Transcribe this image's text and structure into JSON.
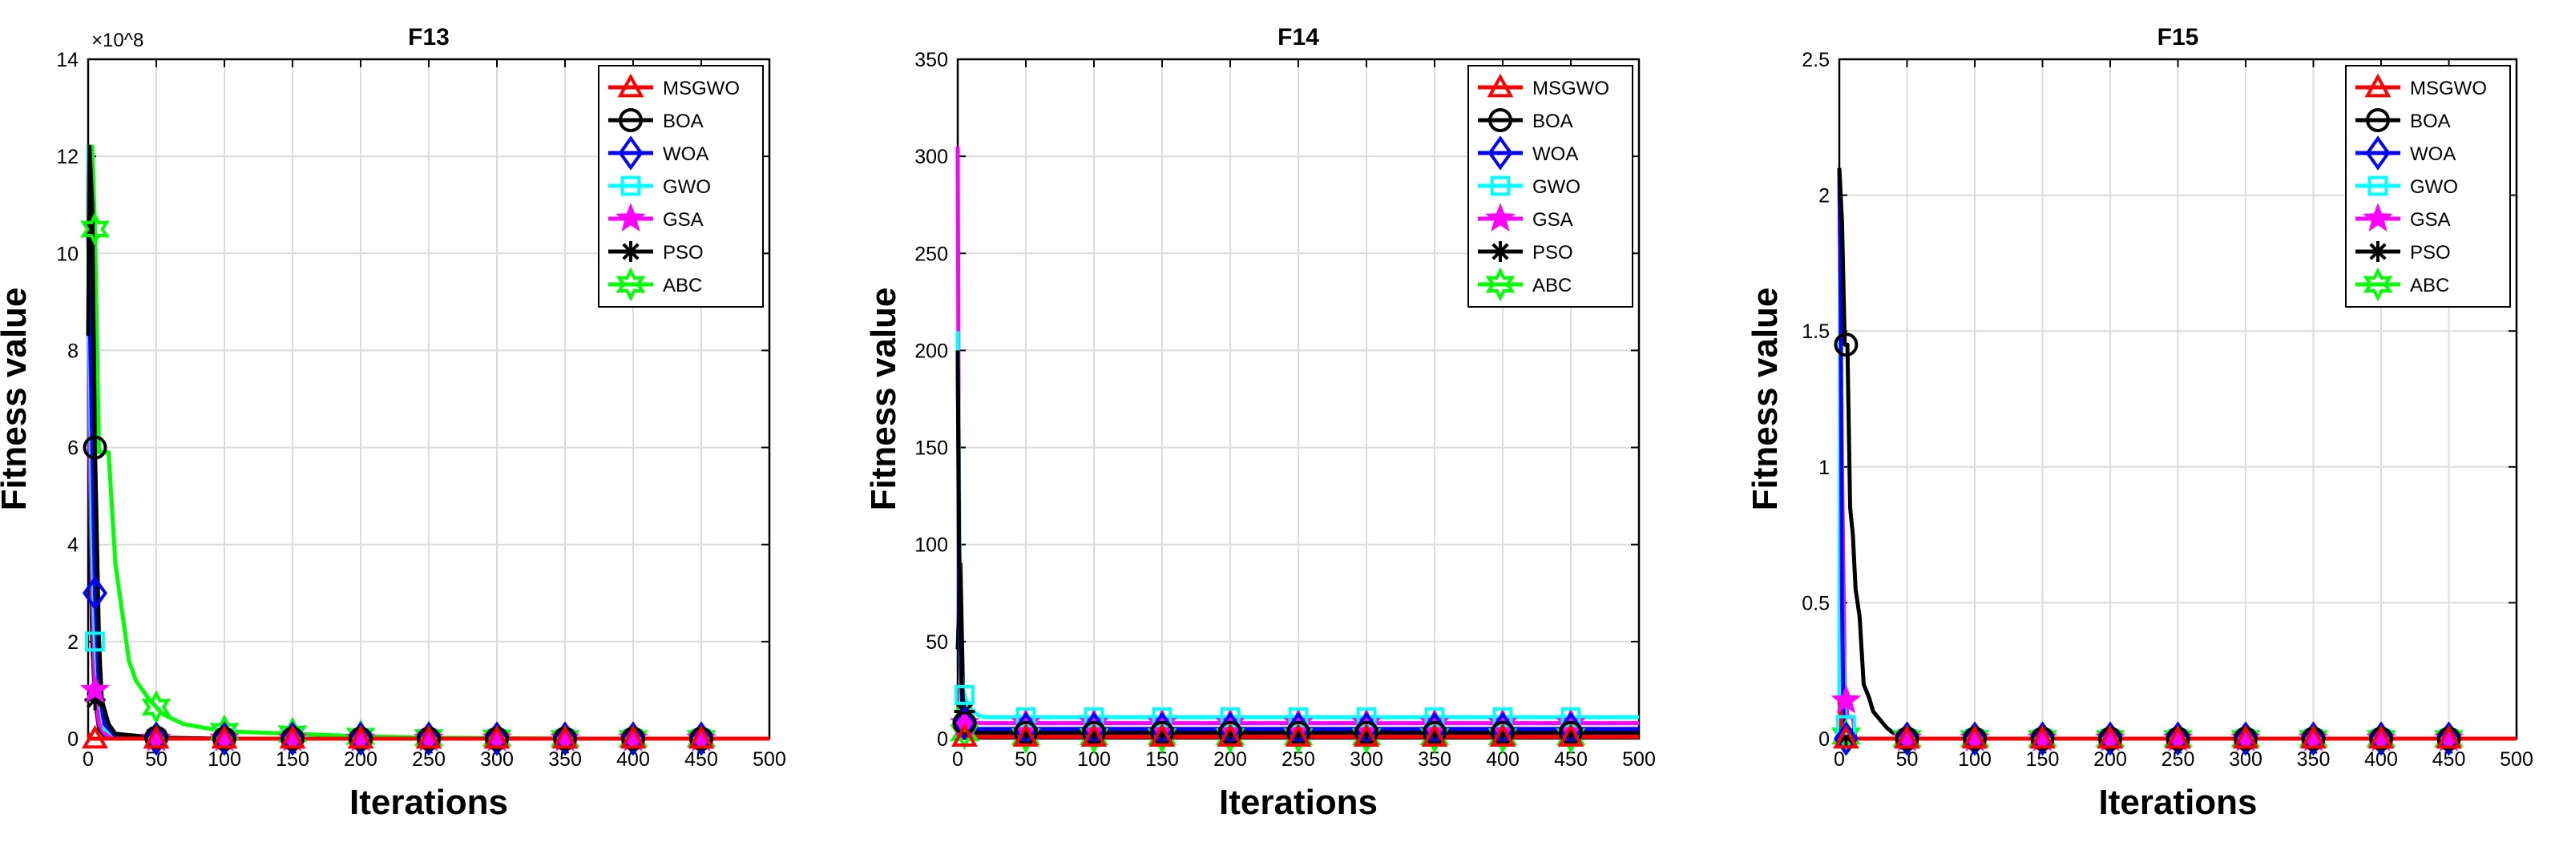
{
  "chart_data": [
    {
      "type": "line",
      "title": "F13",
      "xlabel": "Iterations",
      "ylabel": "Fitness value",
      "xlim": [
        0,
        500
      ],
      "ylim": [
        0,
        14
      ],
      "y_exponent_label": "×10^8",
      "xticks": [
        0,
        50,
        100,
        150,
        200,
        250,
        300,
        350,
        400,
        450,
        500
      ],
      "yticks": [
        0,
        2,
        4,
        6,
        8,
        10,
        12,
        14
      ],
      "grid": true,
      "legend_position": "top-right",
      "series": [
        {
          "name": "MSGWO",
          "color": "#ff0000",
          "marker": "triangle",
          "x": [
            0,
            1,
            2,
            500
          ],
          "y": [
            0.1,
            0.05,
            0,
            0
          ]
        },
        {
          "name": "BOA",
          "color": "#000000",
          "marker": "circle",
          "x": [
            0,
            1,
            3,
            5,
            8,
            10,
            15,
            20,
            50,
            100,
            500
          ],
          "y": [
            8.3,
            12.2,
            11,
            6,
            2,
            0.8,
            0.3,
            0.1,
            0.02,
            0,
            0
          ]
        },
        {
          "name": "WOA",
          "color": "#0000ff",
          "marker": "diamond",
          "x": [
            0,
            1,
            3,
            5,
            8,
            12,
            20,
            50,
            500
          ],
          "y": [
            10.5,
            9,
            6,
            3,
            1,
            0.3,
            0.05,
            0,
            0
          ]
        },
        {
          "name": "GWO",
          "color": "#00ffff",
          "marker": "square",
          "x": [
            0,
            1,
            3,
            5,
            8,
            12,
            20,
            50,
            500
          ],
          "y": [
            12.2,
            8,
            4,
            2,
            0.8,
            0.2,
            0.05,
            0,
            0
          ]
        },
        {
          "name": "GSA",
          "color": "#ff00ff",
          "marker": "star",
          "x": [
            0,
            1,
            3,
            5,
            8,
            12,
            20,
            50,
            500
          ],
          "y": [
            12.2,
            6,
            3,
            1,
            0.3,
            0.1,
            0,
            0,
            0
          ]
        },
        {
          "name": "PSO",
          "color": "#000000",
          "marker": "asterisk",
          "x": [
            0,
            1,
            3,
            5,
            8,
            12,
            20,
            50,
            500
          ],
          "y": [
            12.2,
            5,
            2,
            0.8,
            0.2,
            0.05,
            0,
            0,
            0
          ]
        },
        {
          "name": "ABC",
          "color": "#00ff00",
          "marker": "hexagram",
          "x": [
            0,
            3,
            5,
            8,
            15,
            20,
            25,
            30,
            35,
            45,
            55,
            70,
            100,
            150,
            200,
            250,
            300,
            350,
            400,
            450,
            500
          ],
          "y": [
            12.2,
            12.2,
            10.5,
            5.9,
            5.9,
            3.6,
            2.6,
            1.6,
            1.2,
            0.8,
            0.5,
            0.3,
            0.15,
            0.1,
            0.05,
            0.02,
            0.01,
            0,
            0,
            0,
            0
          ]
        }
      ]
    },
    {
      "type": "line",
      "title": "F14",
      "xlabel": "Iterations",
      "ylabel": "Fitness value",
      "xlim": [
        0,
        500
      ],
      "ylim": [
        0,
        350
      ],
      "xticks": [
        0,
        50,
        100,
        150,
        200,
        250,
        300,
        350,
        400,
        450,
        500
      ],
      "yticks": [
        0,
        50,
        100,
        150,
        200,
        250,
        300,
        350
      ],
      "grid": true,
      "legend_position": "top-right",
      "series": [
        {
          "name": "MSGWO",
          "color": "#ff0000",
          "marker": "triangle",
          "x": [
            0,
            1,
            2,
            500
          ],
          "y": [
            7,
            3,
            1,
            1
          ]
        },
        {
          "name": "BOA",
          "color": "#000000",
          "marker": "circle",
          "x": [
            0,
            1,
            3,
            5,
            8,
            500
          ],
          "y": [
            200,
            100,
            30,
            8,
            3,
            3
          ]
        },
        {
          "name": "WOA",
          "color": "#0000ff",
          "marker": "diamond",
          "x": [
            0,
            1,
            3,
            5,
            10,
            500
          ],
          "y": [
            197,
            80,
            20,
            8,
            5,
            5
          ]
        },
        {
          "name": "GWO",
          "color": "#00ffff",
          "marker": "square",
          "x": [
            0,
            2,
            4,
            6,
            10,
            15,
            20,
            500
          ],
          "y": [
            210,
            40,
            25,
            20,
            15,
            12,
            11,
            11
          ]
        },
        {
          "name": "GSA",
          "color": "#ff00ff",
          "marker": "star",
          "x": [
            0,
            1,
            3,
            5,
            500
          ],
          "y": [
            305,
            100,
            20,
            8,
            8
          ]
        },
        {
          "name": "PSO",
          "color": "#000000",
          "marker": "asterisk",
          "x": [
            0,
            2,
            4,
            6,
            10,
            500
          ],
          "y": [
            46,
            90,
            20,
            8,
            3,
            3
          ]
        },
        {
          "name": "ABC",
          "color": "#00ff00",
          "marker": "hexagram",
          "x": [
            0,
            2,
            5,
            10,
            500
          ],
          "y": [
            17,
            10,
            3,
            1,
            1
          ]
        }
      ]
    },
    {
      "type": "line",
      "title": "F15",
      "xlabel": "Iterations",
      "ylabel": "Fitness value",
      "xlim": [
        0,
        500
      ],
      "ylim": [
        0,
        2.5
      ],
      "xticks": [
        0,
        50,
        100,
        150,
        200,
        250,
        300,
        350,
        400,
        450,
        500
      ],
      "yticks": [
        0,
        0.5,
        1,
        1.5,
        2,
        2.5
      ],
      "ytick_labels": [
        "0",
        "0.5",
        "1",
        "1.5",
        "2",
        "2.5"
      ],
      "grid": true,
      "legend_position": "top-right",
      "series": [
        {
          "name": "MSGWO",
          "color": "#ff0000",
          "marker": "triangle",
          "x": [
            0,
            2,
            4,
            500
          ],
          "y": [
            0.15,
            0.02,
            0,
            0
          ]
        },
        {
          "name": "BOA",
          "color": "#000000",
          "marker": "circle",
          "x": [
            0,
            2,
            4,
            6,
            8,
            10,
            12,
            15,
            18,
            22,
            25,
            30,
            35,
            40,
            45,
            50,
            500
          ],
          "y": [
            2.1,
            1.9,
            1.45,
            1.45,
            0.85,
            0.75,
            0.55,
            0.45,
            0.2,
            0.15,
            0.1,
            0.07,
            0.04,
            0.02,
            0.01,
            0,
            0
          ]
        },
        {
          "name": "WOA",
          "color": "#0000ff",
          "marker": "diamond",
          "x": [
            0,
            1,
            2,
            3,
            5,
            500
          ],
          "y": [
            2.1,
            1.6,
            0.5,
            0.1,
            0,
            0
          ]
        },
        {
          "name": "GWO",
          "color": "#00ffff",
          "marker": "square",
          "x": [
            0,
            1,
            2,
            4,
            6,
            500
          ],
          "y": [
            0.08,
            2.0,
            0.5,
            0.1,
            0,
            0
          ]
        },
        {
          "name": "GSA",
          "color": "#ff00ff",
          "marker": "star",
          "x": [
            0,
            2,
            4,
            6,
            10,
            12,
            500
          ],
          "y": [
            2.1,
            1.0,
            0.2,
            0.08,
            0.08,
            0,
            0
          ]
        },
        {
          "name": "PSO",
          "color": "#000000",
          "marker": "asterisk",
          "x": [
            0,
            2,
            4,
            8,
            500
          ],
          "y": [
            0.15,
            0.05,
            0.01,
            0,
            0
          ]
        },
        {
          "name": "ABC",
          "color": "#00ff00",
          "marker": "hexagram",
          "x": [
            0,
            2,
            5,
            8,
            500
          ],
          "y": [
            0.1,
            0.05,
            0.01,
            0,
            0
          ]
        }
      ]
    }
  ]
}
